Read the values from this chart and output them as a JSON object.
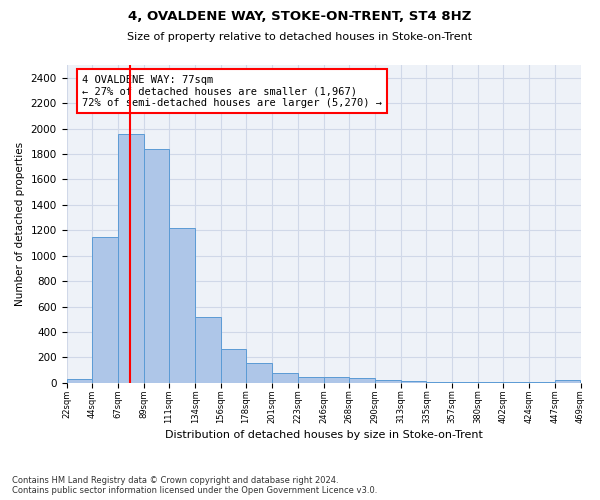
{
  "title": "4, OVALDENE WAY, STOKE-ON-TRENT, ST4 8HZ",
  "subtitle": "Size of property relative to detached houses in Stoke-on-Trent",
  "xlabel": "Distribution of detached houses by size in Stoke-on-Trent",
  "ylabel": "Number of detached properties",
  "bar_color": "#aec6e8",
  "bar_edge_color": "#5b9bd5",
  "grid_color": "#d0d8e8",
  "bg_color": "#eef2f8",
  "vline_x": 77,
  "vline_color": "red",
  "annotation_text": "4 OVALDENE WAY: 77sqm\n← 27% of detached houses are smaller (1,967)\n72% of semi-detached houses are larger (5,270) →",
  "annotation_box_color": "red",
  "bin_edges": [
    22,
    44,
    67,
    89,
    111,
    134,
    156,
    178,
    201,
    223,
    246,
    268,
    290,
    313,
    335,
    357,
    380,
    402,
    424,
    447,
    469
  ],
  "bar_heights": [
    30,
    1150,
    1960,
    1840,
    1215,
    515,
    265,
    160,
    80,
    50,
    45,
    40,
    20,
    18,
    10,
    10,
    10,
    5,
    5,
    20
  ],
  "ylim": [
    0,
    2500
  ],
  "yticks": [
    0,
    200,
    400,
    600,
    800,
    1000,
    1200,
    1400,
    1600,
    1800,
    2000,
    2200,
    2400
  ],
  "footer_text": "Contains HM Land Registry data © Crown copyright and database right 2024.\nContains public sector information licensed under the Open Government Licence v3.0.",
  "tick_labels": [
    "22sqm",
    "44sqm",
    "67sqm",
    "89sqm",
    "111sqm",
    "134sqm",
    "156sqm",
    "178sqm",
    "201sqm",
    "223sqm",
    "246sqm",
    "268sqm",
    "290sqm",
    "313sqm",
    "335sqm",
    "357sqm",
    "380sqm",
    "402sqm",
    "424sqm",
    "447sqm",
    "469sqm"
  ]
}
